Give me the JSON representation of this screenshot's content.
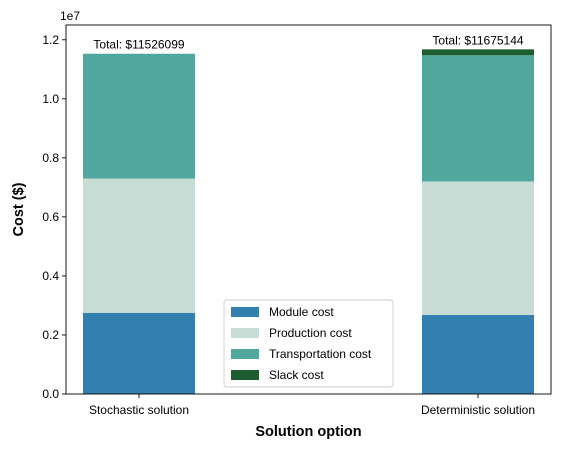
{
  "chart_data": {
    "type": "bar",
    "stacked": true,
    "categories": [
      "Stochastic solution",
      "Deterministic solution"
    ],
    "series": [
      {
        "name": "Module cost",
        "color": "#3280b0",
        "values": [
          2750000,
          2680000
        ]
      },
      {
        "name": "Production cost",
        "color": "#c6dcd4",
        "values": [
          4550000,
          4520000
        ]
      },
      {
        "name": "Transportation cost",
        "color": "#50a79d",
        "values": [
          4226099,
          4275144
        ]
      },
      {
        "name": "Slack cost",
        "color": "#1c5c30",
        "values": [
          0,
          200000
        ]
      }
    ],
    "annotations": [
      "Total: $11526099",
      "Total: $11675144"
    ],
    "xlabel": "Solution option",
    "ylabel": "Cost ($)",
    "ylim": [
      0,
      12500000
    ],
    "yticks": [
      0,
      0.2,
      0.4,
      0.6,
      0.8,
      1.0,
      1.2
    ],
    "ytick_labels": [
      "0.0",
      "0.2",
      "0.4",
      "0.6",
      "0.8",
      "1.0",
      "1.2"
    ],
    "y_scale_label": "1e7",
    "y_scale_factor": 10000000,
    "grid": false,
    "legend_position": "lower center"
  }
}
